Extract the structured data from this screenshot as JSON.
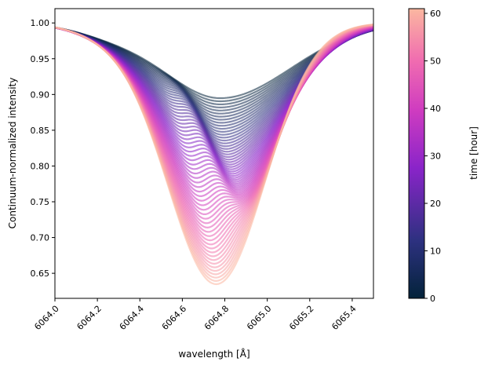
{
  "chart_data": {
    "type": "line",
    "xlabel": "wavelength [Å]",
    "ylabel": "Continuum-normalized intensity",
    "xlim": [
      6064.0,
      6065.5
    ],
    "ylim": [
      0.615,
      1.02
    ],
    "x_ticks": [
      6064.0,
      6064.2,
      6064.4,
      6064.6,
      6064.8,
      6065.0,
      6065.2,
      6065.4
    ],
    "x_tick_labels": [
      "6064.0",
      "6064.2",
      "6064.4",
      "6064.6",
      "6064.8",
      "6065.0",
      "6065.2",
      "6065.4"
    ],
    "y_ticks": [
      0.65,
      0.7,
      0.75,
      0.8,
      0.85,
      0.9,
      0.95,
      1.0
    ],
    "y_tick_labels": [
      "0.65",
      "0.70",
      "0.75",
      "0.80",
      "0.85",
      "0.90",
      "0.95",
      "1.00"
    ],
    "grid": false,
    "series_description": "Spectral line profiles over time, colored by time",
    "time_range": [
      0,
      61
    ],
    "num_profiles": 61,
    "profile_endpoints": {
      "early": {
        "time": 0,
        "min_intensity": 0.89,
        "min_wavelength": 6064.78
      },
      "late": {
        "time": 61,
        "min_intensity": 0.635,
        "min_wavelength": 6064.77
      }
    },
    "colorbar": {
      "label": "time [hour]",
      "range": [
        0,
        61
      ],
      "ticks": [
        0,
        10,
        20,
        30,
        40,
        50,
        60
      ],
      "tick_labels": [
        "0",
        "10",
        "20",
        "30",
        "40",
        "50",
        "60"
      ],
      "colors": [
        "#03233a",
        "#2d3180",
        "#8a24c9",
        "#cf3cc0",
        "#f06cb0",
        "#f7a79c",
        "#fbb7a0"
      ]
    }
  }
}
